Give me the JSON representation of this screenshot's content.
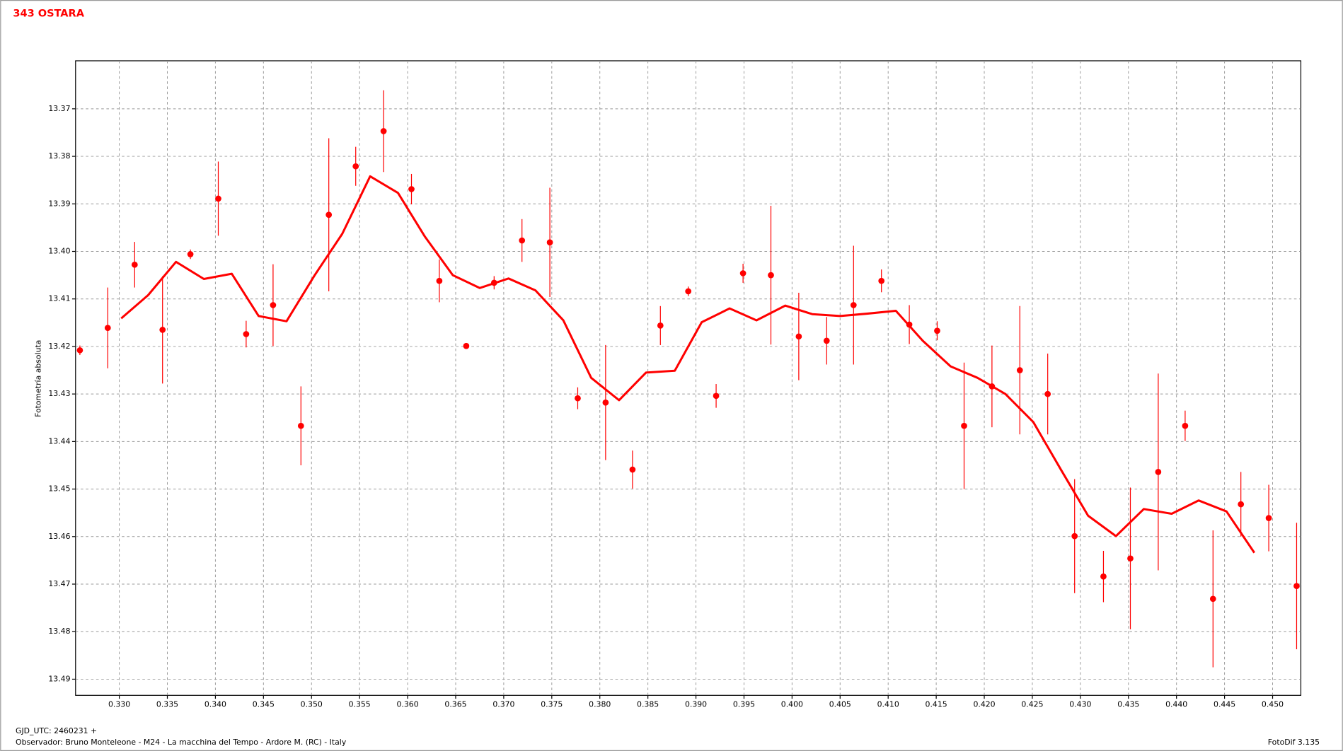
{
  "chart_data": {
    "type": "scatter",
    "title": "343 OSTARA",
    "y_label": "Fotometría absoluta",
    "x_label": "GJD_UTC: 2460231 +",
    "footer_left": "Observador: Bruno Monteleone - M24 - La macchina del Tempo - Ardore M. (RC) - Italy",
    "footer_right": "FotoDif 3.135",
    "grid": true,
    "y_inverted": true,
    "xlim": [
      0.32545,
      0.45294
    ],
    "ylim": [
      13.4934,
      13.3599
    ],
    "xticks": [
      {
        "value": 0.33,
        "label": "0.330"
      },
      {
        "value": 0.335,
        "label": "0.335"
      },
      {
        "value": 0.34,
        "label": "0.340"
      },
      {
        "value": 0.345,
        "label": "0.345"
      },
      {
        "value": 0.35,
        "label": "0.350"
      },
      {
        "value": 0.355,
        "label": "0.355"
      },
      {
        "value": 0.36,
        "label": "0.360"
      },
      {
        "value": 0.365,
        "label": "0.365"
      },
      {
        "value": 0.37,
        "label": "0.370"
      },
      {
        "value": 0.375,
        "label": "0.375"
      },
      {
        "value": 0.38,
        "label": "0.380"
      },
      {
        "value": 0.385,
        "label": "0.385"
      },
      {
        "value": 0.39,
        "label": "0.390"
      },
      {
        "value": 0.395,
        "label": "0.395"
      },
      {
        "value": 0.4,
        "label": "0.400"
      },
      {
        "value": 0.405,
        "label": "0.405"
      },
      {
        "value": 0.41,
        "label": "0.410"
      },
      {
        "value": 0.415,
        "label": "0.415"
      },
      {
        "value": 0.42,
        "label": "0.420"
      },
      {
        "value": 0.425,
        "label": "0.425"
      },
      {
        "value": 0.43,
        "label": "0.430"
      },
      {
        "value": 0.435,
        "label": "0.435"
      },
      {
        "value": 0.44,
        "label": "0.440"
      },
      {
        "value": 0.445,
        "label": "0.445"
      },
      {
        "value": 0.45,
        "label": "0.450"
      }
    ],
    "yticks": [
      13.37,
      13.38,
      13.39,
      {
        "value": 13.4,
        "label": "13.40"
      },
      13.41,
      13.42,
      13.43,
      13.44,
      13.45,
      13.46,
      13.47,
      13.48,
      13.49
    ],
    "series": [
      {
        "type": "scatter",
        "color": "#ff0000",
        "x": [
          0.3259,
          0.3288,
          0.3316,
          0.3345,
          0.3374,
          0.3403,
          0.3432,
          0.346,
          0.3489,
          0.3518,
          0.3546,
          0.3575,
          0.3604,
          0.3633,
          0.3661,
          0.369,
          0.3719,
          0.3748,
          0.3777,
          0.3806,
          0.3834,
          0.3863,
          0.3892,
          0.3921,
          0.3949,
          0.3978,
          0.4007,
          0.4036,
          0.4064,
          0.4093,
          0.4122,
          0.4151,
          0.4179,
          0.4208,
          0.4237,
          0.4266,
          0.4294,
          0.4324,
          0.4352,
          0.4381,
          0.4409,
          0.4438,
          0.4467,
          0.4496,
          0.4525
        ],
        "values": [
          13.4208,
          13.4161,
          13.4028,
          13.4165,
          13.4006,
          13.3889,
          13.4174,
          13.4113,
          13.4367,
          13.3923,
          13.3821,
          13.3747,
          13.3869,
          13.4062,
          13.4199,
          13.4066,
          13.3977,
          13.3981,
          13.4309,
          13.4318,
          13.4459,
          13.4156,
          13.4084,
          13.4304,
          13.4046,
          13.405,
          13.4179,
          13.4188,
          13.4113,
          13.4062,
          13.4154,
          13.4167,
          13.4367,
          13.4284,
          13.425,
          13.43,
          13.4599,
          13.4684,
          13.4646,
          13.4464,
          13.4367,
          13.4731,
          13.4532,
          13.4561,
          13.4704
        ],
        "errors": [
          0.001,
          0.0085,
          0.0048,
          0.0113,
          0.001,
          0.0078,
          0.0028,
          0.0086,
          0.0083,
          0.0161,
          0.0041,
          0.0086,
          0.0032,
          0.0045,
          0.0005,
          0.0014,
          0.0045,
          0.0115,
          0.0023,
          0.0121,
          0.004,
          0.0041,
          0.001,
          0.0025,
          0.002,
          0.0146,
          0.0092,
          0.005,
          0.0125,
          0.0024,
          0.0041,
          0.002,
          0.0133,
          0.0086,
          0.0135,
          0.0085,
          0.012,
          0.0054,
          0.0149,
          0.0207,
          0.0032,
          0.0144,
          0.0068,
          0.007,
          0.0133
        ]
      },
      {
        "type": "line",
        "color": "#ff0000",
        "x": [
          0.3302,
          0.333,
          0.3359,
          0.3388,
          0.3417,
          0.3445,
          0.3474,
          0.3503,
          0.3532,
          0.3561,
          0.359,
          0.3618,
          0.3647,
          0.3675,
          0.3705,
          0.3733,
          0.3762,
          0.3791,
          0.382,
          0.3848,
          0.3878,
          0.3906,
          0.3935,
          0.3963,
          0.3993,
          0.4021,
          0.405,
          0.4078,
          0.4108,
          0.4136,
          0.4165,
          0.4193,
          0.4222,
          0.4251,
          0.428,
          0.4308,
          0.4337,
          0.4366,
          0.4395,
          0.4423,
          0.4452,
          0.4481
        ],
        "values": [
          13.4141,
          13.4092,
          13.4022,
          13.4058,
          13.4047,
          13.4136,
          13.4147,
          13.4051,
          13.3963,
          13.3842,
          13.3877,
          13.3969,
          13.405,
          13.4077,
          13.4057,
          13.4082,
          13.4145,
          13.4266,
          13.4313,
          13.4255,
          13.4251,
          13.4149,
          13.412,
          13.4145,
          13.4114,
          13.4132,
          13.4136,
          13.4131,
          13.4125,
          13.4188,
          13.4242,
          13.4266,
          13.43,
          13.4359,
          13.446,
          13.4556,
          13.4599,
          13.4542,
          13.4552,
          13.4524,
          13.4547,
          13.4634
        ]
      }
    ]
  }
}
